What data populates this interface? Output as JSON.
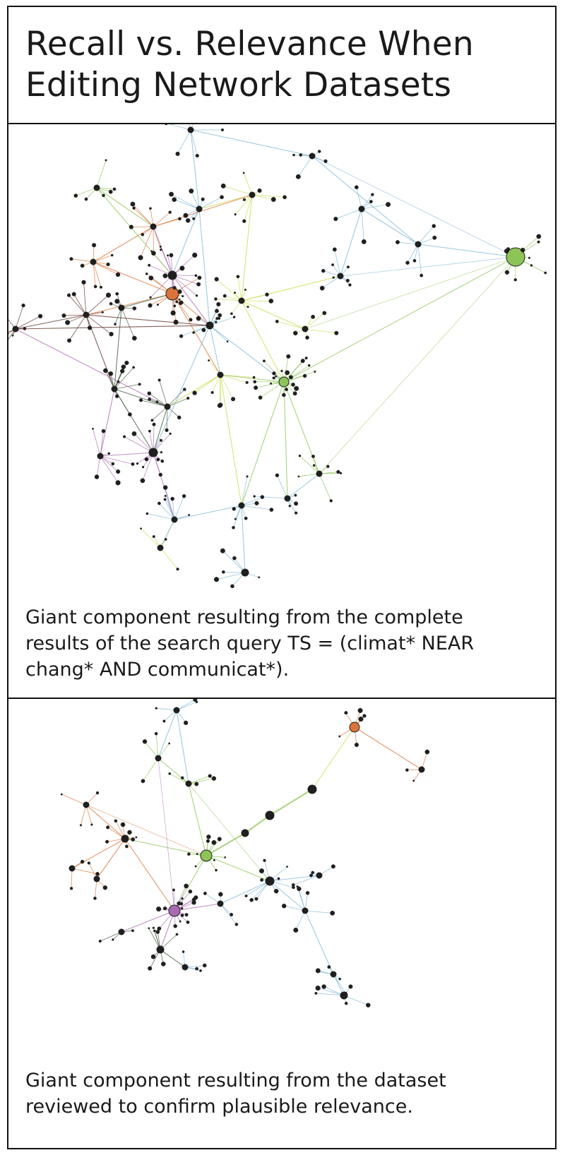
{
  "title": "Recall vs. Relevance When\nEditing Network Datasets",
  "panels": [
    {
      "id": "complete-results",
      "caption": "Giant component resulting from the complete\nresults of the search query TS = (climat* NEAR\nchang* AND communicat*)."
    },
    {
      "id": "reviewed-dataset",
      "caption": "Giant component resulting from the dataset\nreviewed to confirm plausible relevance."
    }
  ],
  "colors": {
    "border": "#111111",
    "node": "#1f1f1f",
    "clusters": [
      "#7db8d6",
      "#8dc457",
      "#c9d94a",
      "#a96bb0",
      "#d9743a",
      "#3e5a3a",
      "#5c2e26",
      "#e6c84a"
    ]
  }
}
